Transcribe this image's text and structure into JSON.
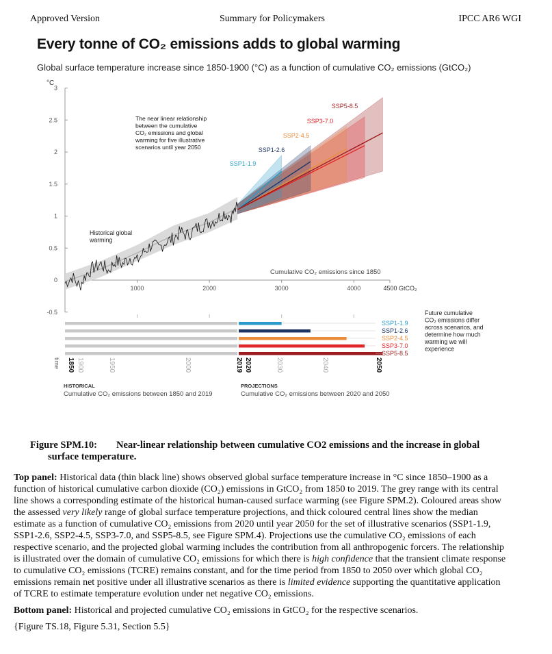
{
  "header": {
    "left": "Approved Version",
    "center": "Summary for Policymakers",
    "right": "IPCC AR6 WGI"
  },
  "figure": {
    "title": "Every tonne of CO₂ emissions adds to global warming",
    "subtitle": "Global surface temperature increase since 1850-1900 (°C) as a function of cumulative CO₂ emissions (GtCO₂)",
    "annotation_linear": [
      "The near linear relationship",
      "between the cumulative",
      "CO₂ emissions and global",
      "warming for five illustrative",
      "scenarios until year 2050"
    ],
    "annotation_hist": [
      "Historical global",
      "warming"
    ],
    "future_note": [
      "Future cumulative",
      "CO₂ emissions differ",
      "across scenarios, and",
      "determine how much",
      "warming we will",
      "experience"
    ],
    "historical_heading": "HISTORICAL",
    "historical_sub": "Cumulative CO₂ emissions between 1850 and 2019",
    "projection_heading": "PROJECTIONS",
    "projection_sub": "Cumulative CO₂ emissions between 2020 and 2050",
    "time_label": "time"
  },
  "chart_data": [
    {
      "type": "line",
      "ylabel": "°C",
      "xlabel": "Cumulative CO₂ emissions since 1850",
      "x_unit": "GtCO₂",
      "xlim": [
        0,
        4500
      ],
      "ylim": [
        -0.5,
        3
      ],
      "x_ticks": [
        1000,
        2000,
        3000,
        4000,
        4500
      ],
      "y_ticks": [
        3,
        2.5,
        2,
        1.5,
        1,
        0.5,
        0,
        -0.5
      ],
      "historical_observed": {
        "x": [
          0,
          100,
          200,
          300,
          400,
          500,
          600,
          700,
          800,
          900,
          1000,
          1100,
          1200,
          1300,
          1400,
          1500,
          1600,
          1700,
          1800,
          1900,
          2000,
          2100,
          2200,
          2300,
          2390
        ],
        "y": [
          -0.05,
          0.05,
          -0.1,
          0.1,
          0.2,
          0.25,
          0.15,
          0.3,
          0.25,
          0.35,
          0.3,
          0.45,
          0.55,
          0.5,
          0.6,
          0.65,
          0.75,
          0.7,
          0.8,
          0.85,
          0.9,
          0.95,
          1.05,
          1.0,
          1.15
        ]
      },
      "historical_range": {
        "x": [
          0,
          500,
          1000,
          1500,
          2000,
          2390
        ],
        "low": [
          -0.15,
          0.05,
          0.3,
          0.55,
          0.75,
          0.95
        ],
        "high": [
          0.1,
          0.3,
          0.55,
          0.85,
          1.05,
          1.3
        ]
      },
      "series": [
        {
          "name": "SSP1-1.9",
          "color": "#2b9ac9",
          "x_end": 3000,
          "central_end": 1.7,
          "low_end": 1.3,
          "high_end": 1.95
        },
        {
          "name": "SSP1-2.6",
          "color": "#1c3564",
          "x_end": 3400,
          "central_end": 1.85,
          "low_end": 1.4,
          "high_end": 2.1
        },
        {
          "name": "SSP2-4.5",
          "color": "#ea8c3a",
          "x_end": 3900,
          "central_end": 2.05,
          "low_end": 1.55,
          "high_end": 2.4
        },
        {
          "name": "SSP3-7.0",
          "color": "#e0272a",
          "x_end": 4150,
          "central_end": 2.1,
          "low_end": 1.6,
          "high_end": 2.55
        },
        {
          "name": "SSP5-8.5",
          "color": "#9b1b1e",
          "x_end": 4400,
          "central_end": 2.3,
          "low_end": 1.7,
          "high_end": 2.85
        }
      ],
      "series_start": {
        "x": 2390,
        "y": 1.1
      }
    },
    {
      "type": "bar",
      "title": "",
      "time_ticks": [
        "1850",
        "1900",
        "1950",
        "2000",
        "2019",
        "2020",
        "2030",
        "2040",
        "2050"
      ],
      "historical_total_gtco2": 2390,
      "projection_end_gtco2": [
        3000,
        3400,
        3900,
        4150,
        4400
      ],
      "categories": [
        "SSP1-1.9",
        "SSP1-2.6",
        "SSP2-4.5",
        "SSP3-7.0",
        "SSP5-8.5"
      ]
    }
  ],
  "caption": {
    "number": "Figure SPM.10:",
    "title_line1": "Near-linear relationship between cumulative CO2 emissions and the increase in global",
    "title_line2": "surface temperature.",
    "top_panel_label": "Top panel:",
    "top_panel_text_a": " Historical data (thin black line) shows observed global surface temperature increase in °C since 1850–1900 as a function of historical cumulative carbon dioxide (CO₂) emissions in GtCO₂ from 1850 to 2019. The grey range with its central line shows a corresponding estimate of the historical human-caused surface warming (see Figure SPM.2). Coloured areas show the assessed ",
    "top_panel_em1": "very likely",
    "top_panel_text_b": " range of global surface temperature projections, and thick coloured central lines show the median estimate as a function of cumulative CO₂ emissions from 2020 until year 2050 for the set of illustrative scenarios (SSP1-1.9, SSP1-2.6, SSP2-4.5, SSP3-7.0, and SSP5-8.5, see Figure SPM.4). Projections use the cumulative CO₂ emissions of each respective scenario, and the projected global warming includes the contribution from all anthropogenic forcers. The relationship is illustrated over the domain of cumulative CO₂ emissions for which there is ",
    "top_panel_em2": "high confidence",
    "top_panel_text_c": " that the transient climate response to cumulative CO₂ emissions (TCRE) remains constant, and for the time period from 1850 to 2050 over which global CO₂ emissions remain net positive under all illustrative scenarios as there is ",
    "top_panel_em3": "limited evidence",
    "top_panel_text_d": " supporting the quantitative application of TCRE to estimate temperature evolution under net negative CO₂ emissions.",
    "bottom_panel_label": "Bottom panel:",
    "bottom_panel_text": " Historical and projected cumulative CO₂ emissions in GtCO₂ for the respective scenarios.",
    "refs": "{Figure TS.18, Figure 5.31, Section 5.5}"
  }
}
